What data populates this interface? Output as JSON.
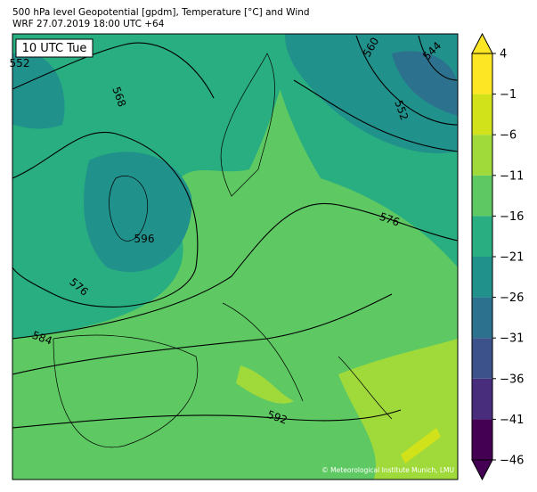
{
  "header": {
    "title": "500 hPa level Geopotential [gpdm], Temperature [°C] and Wind",
    "subtitle": "WRF 27.07.2019 18:00 UTC +64"
  },
  "map": {
    "time_label": "10 UTC Tue",
    "contour_labels": [
      552,
      560,
      544,
      552,
      568,
      576,
      576,
      584,
      592,
      596
    ],
    "credit": "© Meteorological Institute Munich, LMU"
  },
  "colorbar": {
    "lim": [
      -46,
      4
    ],
    "ticks": [
      {
        "value": -46,
        "label": "−46"
      },
      {
        "value": -41,
        "label": "−41"
      },
      {
        "value": -36,
        "label": "−36"
      },
      {
        "value": -31,
        "label": "−31"
      },
      {
        "value": -26,
        "label": "−26"
      },
      {
        "value": -21,
        "label": "−21"
      },
      {
        "value": -16,
        "label": "−16"
      },
      {
        "value": -11,
        "label": "−11"
      },
      {
        "value": -6,
        "label": "−6"
      },
      {
        "value": -1,
        "label": "−1"
      },
      4
    ],
    "colors": [
      "#440154",
      "#472d7b",
      "#3b528b",
      "#2c728e",
      "#21918c",
      "#28ae80",
      "#5ec962",
      "#9fda3a",
      "#d1e21b",
      "#fde725"
    ]
  }
}
